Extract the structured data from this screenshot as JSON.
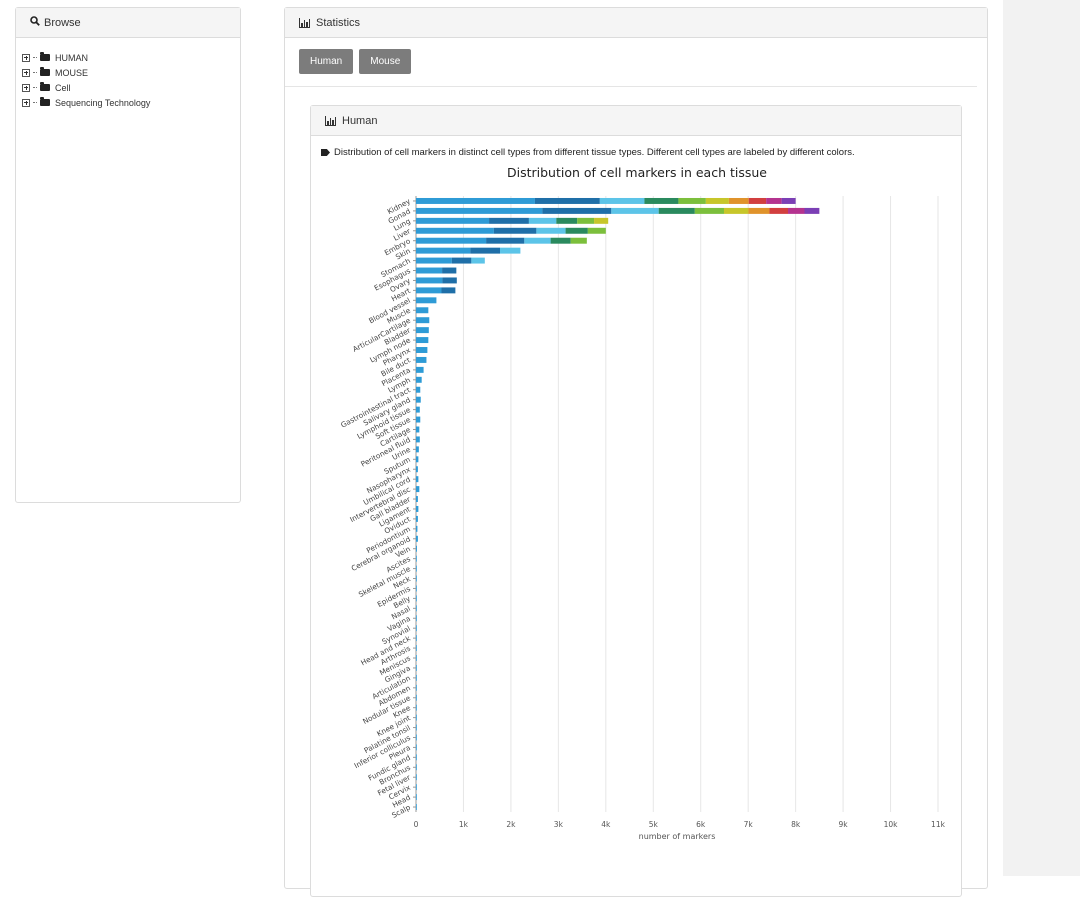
{
  "browse": {
    "title": "Browse",
    "items": [
      {
        "label": "HUMAN"
      },
      {
        "label": "MOUSE"
      },
      {
        "label": "Cell"
      },
      {
        "label": "Sequencing Technology"
      }
    ]
  },
  "statistics": {
    "title": "Statistics",
    "buttons": [
      "Human",
      "Mouse"
    ]
  },
  "human_panel": {
    "title": "Human",
    "note": "Distribution of cell markers in distinct cell types from different tissue types. Different cell types are labeled by different colors."
  },
  "chart_data": {
    "type": "bar",
    "stacked": true,
    "orientation": "horizontal",
    "title": "Distribution of cell markers in each tissue",
    "xlabel": "number of markers",
    "ylabel": "",
    "xlim": [
      0,
      11000
    ],
    "xticks": [
      "0",
      "1k",
      "2k",
      "3k",
      "4k",
      "5k",
      "6k",
      "7k",
      "8k",
      "9k",
      "10k",
      "11k"
    ],
    "grid": true,
    "categories": [
      "Kidney",
      "Gonad",
      "Lung",
      "Liver",
      "Embryo",
      "Skin",
      "Stomach",
      "Esophagus",
      "Ovary",
      "Heart",
      "Blood vessel",
      "Muscle",
      "ArticularCartilage",
      "Bladder",
      "Lymph node",
      "Pharynx",
      "Bile duct",
      "Placenta",
      "Lymph",
      "Gastrointestinal tract",
      "Salivary gland",
      "Lymphoid tissue",
      "Soft tissue",
      "Cartilage",
      "Peritoneal fluid",
      "Urine",
      "Sputum",
      "Nasopharynx",
      "Umbilical cord",
      "Intervertebral disc",
      "Gall bladder",
      "Ligament",
      "Oviduct",
      "Periodontium",
      "Cerebral organoid",
      "Vein",
      "Ascites",
      "Skeletal muscle",
      "Neck",
      "Epidermis",
      "Belly",
      "Nasal",
      "Vagina",
      "Synovial",
      "Head and neck",
      "Arthrosis",
      "Meniscus",
      "Gingiva",
      "Articulation",
      "Abdomen",
      "Nodular tissue",
      "Knee",
      "Knee joint",
      "Palatine tonsil",
      "Inferior colliculus",
      "Pleura",
      "Fundic gland",
      "Bronchus",
      "Fetal liver",
      "Cervix",
      "Head",
      "Scalp"
    ],
    "values": [
      8000,
      8500,
      4050,
      4000,
      3600,
      2200,
      1450,
      850,
      860,
      830,
      430,
      260,
      280,
      270,
      260,
      240,
      220,
      160,
      120,
      90,
      100,
      80,
      90,
      70,
      80,
      60,
      50,
      40,
      50,
      70,
      40,
      50,
      40,
      30,
      40,
      20,
      10,
      10,
      10,
      10,
      10,
      10,
      10,
      10,
      10,
      10,
      10,
      10,
      10,
      10,
      10,
      10,
      10,
      10,
      10,
      10,
      10,
      10,
      10,
      10,
      10,
      10
    ],
    "segment_colors": [
      "#2e9bd6",
      "#1f6fa8",
      "#5cc4e8",
      "#2a8a5e",
      "#7cbf3c",
      "#c7c62a",
      "#e0932b",
      "#d23f3f",
      "#b4338f",
      "#7b3fb5"
    ]
  }
}
